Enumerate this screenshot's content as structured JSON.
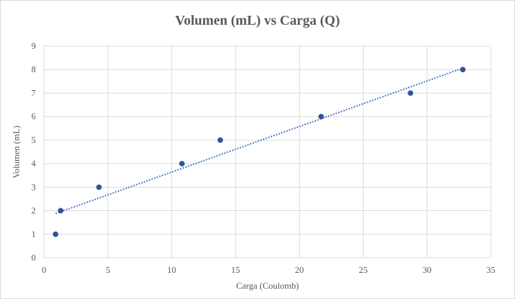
{
  "chart_data": {
    "type": "scatter",
    "title": "Volumen (mL) vs Carga (Q)",
    "xlabel": "Carga (Coulomb)",
    "ylabel": "Volumen (mL)",
    "xlim": [
      0,
      35
    ],
    "ylim": [
      0,
      9
    ],
    "xticks": [
      0,
      5,
      10,
      15,
      20,
      25,
      30,
      35
    ],
    "yticks": [
      0,
      1,
      2,
      3,
      4,
      5,
      6,
      7,
      8,
      9
    ],
    "grid": true,
    "legend": "none",
    "series": [
      {
        "color": "#2f5597",
        "x": [
          0.9,
          1.3,
          4.3,
          10.8,
          13.8,
          21.7,
          28.7,
          32.8
        ],
        "y": [
          1,
          2,
          3,
          4,
          5,
          6,
          7,
          8
        ]
      }
    ],
    "trendline": {
      "type": "linear",
      "style": "dotted",
      "color": "#4472c4",
      "x": [
        0.9,
        32.8
      ],
      "y": [
        1.88,
        8.06
      ]
    }
  }
}
